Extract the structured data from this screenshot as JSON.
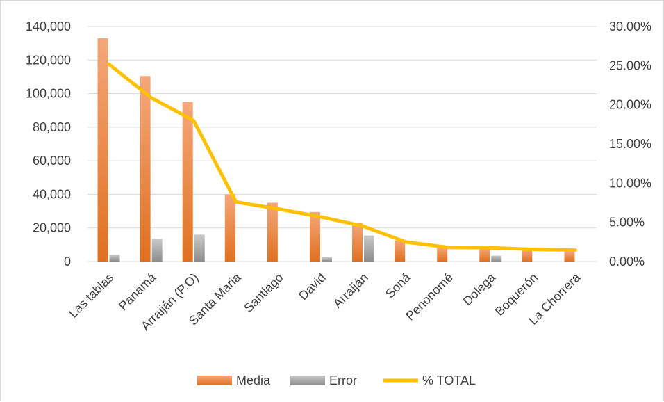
{
  "chart_data": {
    "type": "bar",
    "categories": [
      "Las tablas",
      "Panamá",
      "Arraiján (P.O)",
      "Santa Maria",
      "Santiago",
      "David",
      "Arraiján",
      "Soná",
      "Penonomé",
      "Dolega",
      "Boquerón",
      "La Chorrera"
    ],
    "series": [
      {
        "name": "Media",
        "kind": "bar",
        "axis": "left",
        "color": "#ED7D31",
        "values": [
          133000,
          110500,
          95000,
          40000,
          35000,
          29500,
          23000,
          12500,
          8500,
          8000,
          6500,
          6000
        ]
      },
      {
        "name": "Error",
        "kind": "bar",
        "axis": "left",
        "color": "#A5A5A5",
        "values": [
          4000,
          13500,
          16000,
          0,
          0,
          2500,
          15500,
          0,
          0,
          3500,
          0,
          0
        ]
      },
      {
        "name": "% TOTAL",
        "kind": "line",
        "axis": "right",
        "color": "#FFC000",
        "values": [
          0.252,
          0.209,
          0.18,
          0.076,
          0.067,
          0.057,
          0.045,
          0.025,
          0.018,
          0.0175,
          0.0155,
          0.0145
        ]
      }
    ],
    "y_left": {
      "min": 0,
      "max": 140000,
      "ticks": [
        "0",
        "20,000",
        "40,000",
        "60,000",
        "80,000",
        "100,000",
        "120,000",
        "140,000"
      ]
    },
    "y_right": {
      "min": 0,
      "max": 0.3,
      "ticks": [
        "0.00%",
        "5.00%",
        "10.00%",
        "15.00%",
        "20.00%",
        "25.00%",
        "30.00%"
      ]
    },
    "title": "",
    "xlabel": "",
    "ylabel": "",
    "grid": true,
    "legend_position": "bottom"
  }
}
